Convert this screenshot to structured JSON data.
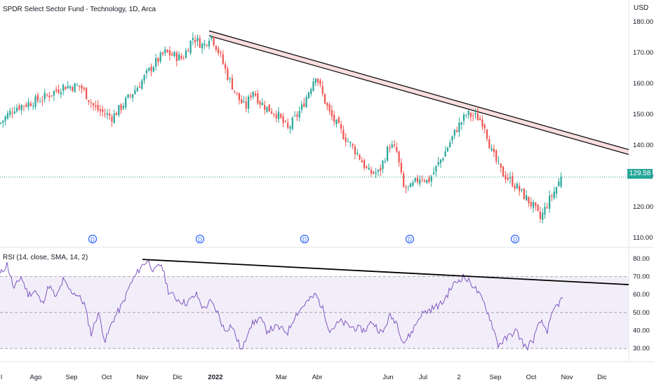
{
  "header": {
    "title": "SPDR Select Sector Fund - Technology, 1D, Arca",
    "currency": "USD"
  },
  "last_price_label": "129.58",
  "colors": {
    "up": "#26a69a",
    "down": "#ef5350",
    "rsi_line": "#7e57c2",
    "rsi_band": "#ede7f6",
    "trendline": "#000000",
    "channel_fill": "#f8dede",
    "dividend": "#2962ff"
  },
  "chart_data": [
    {
      "type": "candlestick",
      "title": "SPDR Select Sector Fund - Technology, 1D, Arca",
      "ylabel": "USD",
      "ylim": [
        107,
        182
      ],
      "x_tick_labels": [
        "l",
        "Ago",
        "Sep",
        "Oct",
        "Nov",
        "Dic",
        "2022",
        "Mar",
        "Abr",
        "Jun",
        "Jul",
        "2",
        "Sep",
        "Oct",
        "Nov",
        "Dic"
      ],
      "x_tick_pos": [
        1,
        51,
        102,
        152,
        203,
        253,
        307,
        401,
        452,
        553,
        603,
        654,
        706,
        757,
        808,
        858
      ],
      "y_tick_labels": [
        "180.00",
        "170.00",
        "160.00",
        "150.00",
        "140.00",
        "130.00",
        "120.00",
        "110.00"
      ],
      "y_ticks": [
        180,
        170,
        160,
        150,
        140,
        130,
        120,
        110
      ],
      "close_anchors": [
        [
          0,
          147
        ],
        [
          20,
          152
        ],
        [
          60,
          155
        ],
        [
          90,
          159
        ],
        [
          115,
          159
        ],
        [
          135,
          152
        ],
        [
          150,
          150
        ],
        [
          160,
          149
        ],
        [
          175,
          153
        ],
        [
          200,
          160
        ],
        [
          215,
          165
        ],
        [
          235,
          170
        ],
        [
          260,
          168
        ],
        [
          275,
          175
        ],
        [
          290,
          172
        ],
        [
          300,
          176
        ],
        [
          312,
          170
        ],
        [
          325,
          162
        ],
        [
          340,
          155
        ],
        [
          350,
          152
        ],
        [
          360,
          158
        ],
        [
          370,
          154
        ],
        [
          380,
          152
        ],
        [
          395,
          150
        ],
        [
          410,
          145
        ],
        [
          430,
          152
        ],
        [
          450,
          163
        ],
        [
          460,
          156
        ],
        [
          470,
          150
        ],
        [
          490,
          143
        ],
        [
          510,
          137
        ],
        [
          525,
          131
        ],
        [
          540,
          131
        ],
        [
          555,
          140
        ],
        [
          565,
          138
        ],
        [
          575,
          126
        ],
        [
          585,
          126
        ],
        [
          600,
          130
        ],
        [
          610,
          128
        ],
        [
          620,
          132
        ],
        [
          635,
          138
        ],
        [
          650,
          145
        ],
        [
          665,
          150
        ],
        [
          680,
          149
        ],
        [
          690,
          147
        ],
        [
          700,
          138
        ],
        [
          715,
          131
        ],
        [
          730,
          128
        ],
        [
          745,
          124
        ],
        [
          760,
          120
        ],
        [
          770,
          116
        ],
        [
          780,
          121
        ],
        [
          790,
          125
        ],
        [
          800,
          129.58
        ]
      ],
      "dividend_markers": [
        {
          "x": 132,
          "label": "D"
        },
        {
          "x": 285,
          "label": "D"
        },
        {
          "x": 434,
          "label": "D"
        },
        {
          "x": 584,
          "label": "D"
        },
        {
          "x": 734,
          "label": "D"
        }
      ],
      "trendline": {
        "x": [
          298,
          896
        ],
        "y": [
          177,
          138.5
        ]
      },
      "channel_width": 1.6,
      "last_price": 129.58
    },
    {
      "type": "line",
      "title": "RSI (14, close, SMA, 14, 2)",
      "ylim": [
        25,
        85
      ],
      "y_tick_labels": [
        "80.00",
        "70.00",
        "60.00",
        "50.00",
        "40.00",
        "30.00"
      ],
      "y_ticks": [
        80,
        70,
        60,
        50,
        40,
        30
      ],
      "band": [
        30,
        70
      ],
      "midline": 50,
      "anchors": [
        [
          0,
          71
        ],
        [
          10,
          77
        ],
        [
          20,
          63
        ],
        [
          30,
          70
        ],
        [
          40,
          60
        ],
        [
          50,
          62
        ],
        [
          60,
          55
        ],
        [
          70,
          65
        ],
        [
          80,
          58
        ],
        [
          90,
          68
        ],
        [
          100,
          62
        ],
        [
          110,
          60
        ],
        [
          120,
          55
        ],
        [
          130,
          38
        ],
        [
          140,
          50
        ],
        [
          150,
          34
        ],
        [
          160,
          45
        ],
        [
          175,
          55
        ],
        [
          185,
          65
        ],
        [
          200,
          75
        ],
        [
          210,
          79
        ],
        [
          220,
          73
        ],
        [
          230,
          77
        ],
        [
          240,
          62
        ],
        [
          250,
          58
        ],
        [
          265,
          55
        ],
        [
          280,
          60
        ],
        [
          290,
          52
        ],
        [
          300,
          56
        ],
        [
          310,
          50
        ],
        [
          320,
          40
        ],
        [
          330,
          43
        ],
        [
          345,
          28
        ],
        [
          355,
          42
        ],
        [
          370,
          47
        ],
        [
          380,
          40
        ],
        [
          395,
          42
        ],
        [
          410,
          39
        ],
        [
          420,
          48
        ],
        [
          435,
          55
        ],
        [
          450,
          60
        ],
        [
          460,
          52
        ],
        [
          470,
          40
        ],
        [
          485,
          45
        ],
        [
          500,
          42
        ],
        [
          520,
          40
        ],
        [
          530,
          45
        ],
        [
          545,
          38
        ],
        [
          555,
          48
        ],
        [
          565,
          45
        ],
        [
          575,
          33
        ],
        [
          585,
          38
        ],
        [
          600,
          49
        ],
        [
          615,
          52
        ],
        [
          630,
          55
        ],
        [
          645,
          65
        ],
        [
          660,
          70
        ],
        [
          675,
          65
        ],
        [
          690,
          55
        ],
        [
          700,
          45
        ],
        [
          710,
          32
        ],
        [
          720,
          35
        ],
        [
          735,
          40
        ],
        [
          750,
          30
        ],
        [
          760,
          35
        ],
        [
          770,
          45
        ],
        [
          780,
          40
        ],
        [
          790,
          52
        ],
        [
          800,
          57
        ]
      ],
      "trendline": {
        "x": [
          203,
          896
        ],
        "y": [
          79.5,
          65.5
        ]
      }
    }
  ]
}
